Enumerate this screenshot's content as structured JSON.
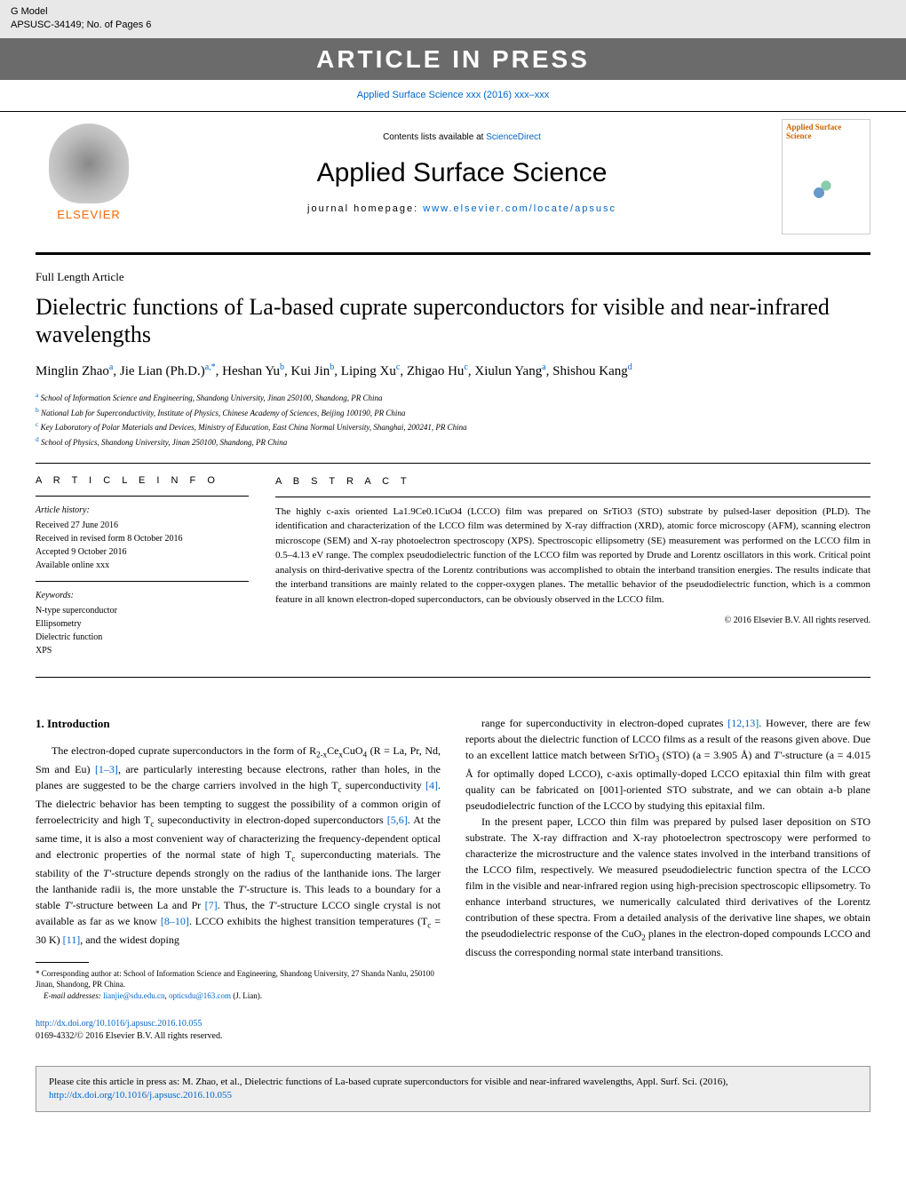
{
  "gmodel": {
    "label": "G Model",
    "code": "APSUSC-34149;   No. of Pages 6"
  },
  "press_banner": "ARTICLE IN PRESS",
  "citation_header": "Applied Surface Science xxx (2016) xxx–xxx",
  "journal_header": {
    "elsevier": "ELSEVIER",
    "contents_prefix": "Contents lists available at ",
    "contents_link": "ScienceDirect",
    "journal_name": "Applied Surface Science",
    "homepage_label": "journal homepage: ",
    "homepage_url": "www.elsevier.com/locate/apsusc",
    "cover_title": "Applied Surface Science"
  },
  "article_type": "Full Length Article",
  "title": "Dielectric functions of La-based cuprate superconductors for visible and near-infrared wavelengths",
  "authors_html": "Minglin Zhao<sup>a</sup>, Jie Lian (Ph.D.)<sup>a,*</sup>, Heshan Yu<sup>b</sup>, Kui Jin<sup>b</sup>, Liping Xu<sup>c</sup>, Zhigao Hu<sup>c</sup>, Xiulun Yang<sup>a</sup>, Shishou Kang<sup>d</sup>",
  "affiliations": [
    {
      "sup": "a",
      "text": "School of Information Science and Engineering, Shandong University, Jinan 250100, Shandong, PR China"
    },
    {
      "sup": "b",
      "text": "National Lab for Superconductivity, Institute of Physics, Chinese Academy of Sciences, Beijing 100190, PR China"
    },
    {
      "sup": "c",
      "text": "Key Laboratory of Polar Materials and Devices, Ministry of Education, East China Normal University, Shanghai, 200241, PR China"
    },
    {
      "sup": "d",
      "text": "School of Physics, Shandong University, Jinan 250100, Shandong, PR China"
    }
  ],
  "article_info": {
    "heading": "A R T I C L E    I N F O",
    "history_label": "Article history:",
    "history": [
      "Received 27 June 2016",
      "Received in revised form 8 October 2016",
      "Accepted 9 October 2016",
      "Available online xxx"
    ],
    "keywords_label": "Keywords:",
    "keywords": [
      "N-type superconductor",
      "Ellipsometry",
      "Dielectric function",
      "XPS"
    ]
  },
  "abstract": {
    "heading": "A B S T R A C T",
    "text": "The highly c-axis oriented La1.9Ce0.1CuO4 (LCCO) film was prepared on SrTiO3 (STO) substrate by pulsed-laser deposition (PLD). The identification and characterization of the LCCO film was determined by X-ray diffraction (XRD), atomic force microscopy (AFM), scanning electron microscope (SEM) and X-ray photoelectron spectroscopy (XPS). Spectroscopic ellipsometry (SE) measurement was performed on the LCCO film in 0.5–4.13 eV range. The complex pseudodielectric function of the LCCO film was reported by Drude and Lorentz oscillators in this work. Critical point analysis on third-derivative spectra of the Lorentz contributions was accomplished to obtain the interband transition energies. The results indicate that the interband transitions are mainly related to the copper-oxygen planes. The metallic behavior of the pseudodielectric function, which is a common feature in all known electron-doped superconductors, can be obviously observed in the LCCO film.",
    "copyright": "© 2016 Elsevier B.V. All rights reserved."
  },
  "intro": {
    "heading": "1.  Introduction",
    "p1_html": "The electron-doped cuprate superconductors in the form of R<sub>2-x</sub>Ce<sub>x</sub>CuO<sub>4</sub> (R = La, Pr, Nd, Sm and Eu) <span class='ref-link'>[1–3]</span>, are particularly interesting because electrons, rather than holes, in the planes are suggested to be the charge carriers involved in the high T<sub>c</sub> superconductivity <span class='ref-link'>[4]</span>. The dielectric behavior has been tempting to suggest the possibility of a common origin of ferroelectricity and high T<sub>c</sub> supeconductivity in electron-doped superconductors <span class='ref-link'>[5,6]</span>. At the same time, it is also a most convenient way of characterizing the frequency-dependent optical and electronic properties of the normal state of high T<sub>c</sub> superconducting materials. The stability of the <i>T'</i>-structure depends strongly on the radius of the lanthanide ions. The larger the lanthanide radii is, the more unstable the <i>T'</i>-structure is. This leads to a boundary for a stable <i>T'</i>-structure between La and Pr <span class='ref-link'>[7]</span>. Thus, the <i>T'</i>-structure LCCO single crystal is not available as far as we know <span class='ref-link'>[8–10]</span>. LCCO exhibits the highest transition temperatures (T<sub>c</sub> = 30 K) <span class='ref-link'>[11]</span>, and the widest doping",
    "p2_html": "range for superconductivity in electron-doped cuprates <span class='ref-link'>[12,13]</span>. However, there are few reports about the dielectric function of LCCO films as a result of the reasons given above. Due to an excellent lattice match between SrTiO<sub>3</sub> (STO) (a = 3.905 Å) and <i>T'</i>-structure (a = 4.015 Å for optimally doped LCCO), c-axis optimally-doped LCCO epitaxial thin film with great quality can be fabricated on [001]-oriented STO substrate, and we can obtain a-b plane pseudodielectric function of the LCCO by studying this epitaxial film.",
    "p3_html": "In the present paper, LCCO thin film was prepared by pulsed laser deposition on STO substrate. The X-ray diffraction and X-ray photoelectron spectroscopy were performed to characterize the microstructure and the valence states involved in the interband transitions of the LCCO film, respectively. We measured pseudodielectric function spectra of the LCCO film in the visible and near-infrared region using high-precision spectroscopic ellipsometry. To enhance interband structures, we numerically calculated third derivatives of the Lorentz contribution of these spectra. From a detailed analysis of the derivative line shapes, we obtain the pseudodielectric response of the CuO<sub>2</sub> planes in the electron-doped compounds LCCO and discuss the corresponding normal state interband transitions."
  },
  "footnote": {
    "corresponding": "* Corresponding author at: School of Information Science and Engineering, Shandong University, 27 Shanda Nanlu, 250100 Jinan, Shandong, PR China.",
    "email_label": "E-mail addresses: ",
    "email1": "lianjie@sdu.edu.cn",
    "email2": "opticsdu@163.com",
    "email_suffix": " (J. Lian)."
  },
  "doi": {
    "url": "http://dx.doi.org/10.1016/j.apsusc.2016.10.055",
    "issn_line": "0169-4332/© 2016 Elsevier B.V. All rights reserved."
  },
  "cite_box": {
    "prefix": "Please cite this article in press as: M. Zhao, et al., Dielectric functions of La-based cuprate superconductors for visible and near-infrared wavelengths, Appl. Surf. Sci. (2016), ",
    "url": "http://dx.doi.org/10.1016/j.apsusc.2016.10.055"
  },
  "colors": {
    "link": "#0066cc",
    "banner_bg": "#6b6b6b",
    "elsevier_orange": "#ff6600",
    "gmodel_bg": "#e8e8e8",
    "citebox_bg": "#eeeeee"
  }
}
